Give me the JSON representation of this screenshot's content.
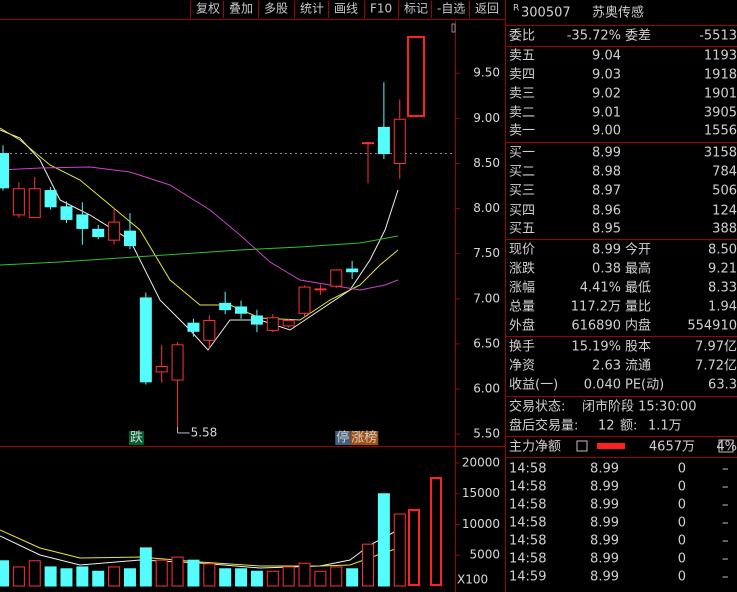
{
  "toolbar": [
    "复权",
    "叠加",
    "多股",
    "统计",
    "画线",
    "F10",
    "标记",
    "-自选",
    "返回"
  ],
  "stock": {
    "badge": "R",
    "code": "300507",
    "name": "苏奥传感"
  },
  "commission": {
    "ratio_label": "委比",
    "ratio": "-35.72%",
    "diff_label": "委差",
    "diff": "-5513"
  },
  "order_book": [
    {
      "label": "卖五",
      "price": "9.04",
      "volume": "1193"
    },
    {
      "label": "卖四",
      "price": "9.03",
      "volume": "1918"
    },
    {
      "label": "卖三",
      "price": "9.02",
      "volume": "1901"
    },
    {
      "label": "卖二",
      "price": "9.01",
      "volume": "3905"
    },
    {
      "label": "卖一",
      "price": "9.00",
      "volume": "1556"
    },
    {
      "label": "买一",
      "price": "8.99",
      "volume": "3158"
    },
    {
      "label": "买二",
      "price": "8.98",
      "volume": "784"
    },
    {
      "label": "买三",
      "price": "8.97",
      "volume": "506"
    },
    {
      "label": "买四",
      "price": "8.96",
      "volume": "124"
    },
    {
      "label": "买五",
      "price": "8.95",
      "volume": "388"
    }
  ],
  "quote": [
    [
      {
        "label": "现价",
        "value": "8.99",
        "color": "#ff3232"
      },
      {
        "label": "今开",
        "value": "8.50",
        "color": "#00e600"
      }
    ],
    [
      {
        "label": "涨跌",
        "value": "0.38",
        "color": "#ff3232"
      },
      {
        "label": "最高",
        "value": "9.21",
        "color": "#ff3232"
      }
    ],
    [
      {
        "label": "涨幅",
        "value": "4.41%",
        "color": "#ff3232"
      },
      {
        "label": "最低",
        "value": "8.33",
        "color": "#00e600"
      }
    ],
    [
      {
        "label": "总量",
        "value": "117.2万",
        "color": "#ffff00"
      },
      {
        "label": "量比",
        "value": "1.94",
        "color": "#ff3232"
      }
    ],
    [
      {
        "label": "外盘",
        "value": "616890",
        "color": "#ff3232"
      },
      {
        "label": "内盘",
        "value": "554910",
        "color": "#00e600"
      }
    ],
    [
      {
        "label": "换手",
        "value": "15.19%",
        "color": "#e8e8e8"
      },
      {
        "label": "股本",
        "value": "7.97亿",
        "color": "#e8e8e8"
      }
    ],
    [
      {
        "label": "净资",
        "value": "2.63",
        "color": "#e8e8e8"
      },
      {
        "label": "流通",
        "value": "7.72亿",
        "color": "#e8e8e8"
      }
    ],
    [
      {
        "label": "收益(一)",
        "value": "0.040",
        "color": "#e8e8e8"
      },
      {
        "label": "PE(动)",
        "value": "63.3",
        "color": "#e8e8e8"
      }
    ]
  ],
  "status": {
    "label": "交易状态:",
    "value": "闭市阶段 15:30:00"
  },
  "after_hours": {
    "label": "盘后交易量:",
    "volume": "12",
    "amount_label": "额:",
    "amount": "1.1万"
  },
  "main_force": {
    "label": "主力净额",
    "value": "4657万",
    "ratio": "4%"
  },
  "trades": [
    {
      "time": "14:58",
      "price": "8.99",
      "volume": "0",
      "flag": "–"
    },
    {
      "time": "14:58",
      "price": "8.99",
      "volume": "0",
      "flag": "–"
    },
    {
      "time": "14:58",
      "price": "8.99",
      "volume": "0",
      "flag": "–"
    },
    {
      "time": "14:58",
      "price": "8.99",
      "volume": "0",
      "flag": "–"
    },
    {
      "time": "14:58",
      "price": "8.99",
      "volume": "0",
      "flag": "–"
    },
    {
      "time": "14:58",
      "price": "8.99",
      "volume": "0",
      "flag": "–"
    },
    {
      "time": "14:59",
      "price": "8.99",
      "volume": "0",
      "flag": "–"
    }
  ],
  "chart_data": [
    {
      "type": "candlestick",
      "ylim": [
        5.38,
        10.09
      ],
      "yticks": [
        {
          "value": 5.5,
          "label": "5.50"
        },
        {
          "value": 6,
          "label": "6.00"
        },
        {
          "value": 6.5,
          "label": "6.50"
        },
        {
          "value": 7,
          "label": "7.00"
        },
        {
          "value": 7.5,
          "label": "7.50"
        },
        {
          "value": 8,
          "label": "8.00"
        },
        {
          "value": 8.5,
          "label": "8.50"
        },
        {
          "value": 9,
          "label": "9.00"
        },
        {
          "value": 9.5,
          "label": "9.50"
        }
      ],
      "reference_line": 8.61,
      "up_color": "#ff3232",
      "down_color": "#54fcfc",
      "open": [
        8.61,
        7.93,
        7.9,
        8.2,
        8.02,
        7.93,
        7.77,
        7.65,
        7.75,
        7.01,
        6.19,
        6.1,
        6.73,
        6.54,
        6.95,
        6.91,
        6.81,
        6.65,
        6.7,
        6.84,
        7.1,
        7.14,
        7.33,
        8.73,
        8.9,
        8.5
      ],
      "high": [
        8.7,
        8.29,
        8.35,
        8.24,
        8.08,
        8.07,
        7.82,
        8.0,
        7.95,
        7.07,
        6.49,
        6.52,
        6.78,
        6.82,
        7.08,
        6.98,
        6.88,
        6.83,
        6.78,
        7.15,
        7.16,
        7.33,
        7.42,
        8.73,
        9.4,
        9.21
      ],
      "low": [
        8.2,
        7.9,
        7.9,
        7.99,
        7.84,
        7.6,
        7.66,
        7.6,
        7.55,
        6.05,
        6.07,
        5.58,
        6.58,
        6.45,
        6.83,
        6.78,
        6.63,
        6.63,
        6.68,
        6.8,
        7.04,
        7.12,
        7.22,
        8.28,
        8.55,
        8.33
      ],
      "close": [
        8.23,
        8.22,
        8.22,
        8.02,
        7.88,
        7.78,
        7.69,
        7.85,
        7.59,
        6.08,
        6.25,
        6.49,
        6.64,
        6.76,
        6.88,
        6.84,
        6.72,
        6.79,
        6.76,
        7.13,
        7.11,
        7.32,
        7.3,
        8.73,
        8.61,
        8.99
      ],
      "annotations": [
        {
          "text": "跌",
          "index": 8
        },
        {
          "text": "停",
          "index": 21
        },
        {
          "text": "涨榜",
          "index": 22
        }
      ],
      "low_label": "5.58"
    },
    {
      "type": "volume",
      "ylim": [
        0,
        22600
      ],
      "yticks": [
        5000,
        10000,
        15000,
        20000
      ],
      "values": [
        4100,
        3100,
        4100,
        3100,
        2800,
        3100,
        2400,
        3100,
        2800,
        6200,
        4200,
        4700,
        4200,
        3600,
        2800,
        2800,
        2400,
        2400,
        3100,
        3700,
        2400,
        3100,
        2800,
        6800,
        15000,
        11700
      ],
      "unit_label": "X100"
    }
  ]
}
